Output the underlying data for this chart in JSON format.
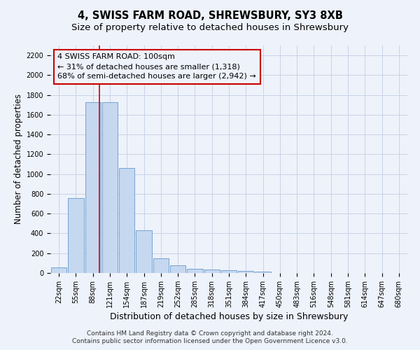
{
  "title": "4, SWISS FARM ROAD, SHREWSBURY, SY3 8XB",
  "subtitle": "Size of property relative to detached houses in Shrewsbury",
  "xlabel": "Distribution of detached houses by size in Shrewsbury",
  "ylabel": "Number of detached properties",
  "footer_line1": "Contains HM Land Registry data © Crown copyright and database right 2024.",
  "footer_line2": "Contains public sector information licensed under the Open Government Licence v3.0.",
  "bar_labels": [
    "22sqm",
    "55sqm",
    "88sqm",
    "121sqm",
    "154sqm",
    "187sqm",
    "219sqm",
    "252sqm",
    "285sqm",
    "318sqm",
    "351sqm",
    "384sqm",
    "417sqm",
    "450sqm",
    "483sqm",
    "516sqm",
    "548sqm",
    "581sqm",
    "614sqm",
    "647sqm",
    "680sqm"
  ],
  "bar_values": [
    55,
    760,
    1730,
    1730,
    1060,
    430,
    150,
    80,
    40,
    35,
    25,
    20,
    15,
    0,
    0,
    0,
    0,
    0,
    0,
    0,
    0
  ],
  "bar_color": "#c5d8f0",
  "bar_edgecolor": "#6699cc",
  "grid_color": "#c8d4e8",
  "background_color": "#eef2fa",
  "vline_color": "#cc0000",
  "annotation_line1": "4 SWISS FARM ROAD: 100sqm",
  "annotation_line2": "← 31% of detached houses are smaller (1,318)",
  "annotation_line3": "68% of semi-detached houses are larger (2,942) →",
  "annotation_box_color": "#cc0000",
  "ylim": [
    0,
    2300
  ],
  "yticks": [
    0,
    200,
    400,
    600,
    800,
    1000,
    1200,
    1400,
    1600,
    1800,
    2000,
    2200
  ],
  "title_fontsize": 10.5,
  "subtitle_fontsize": 9.5,
  "xlabel_fontsize": 9,
  "ylabel_fontsize": 8.5,
  "tick_fontsize": 7,
  "annotation_fontsize": 8,
  "footer_fontsize": 6.5
}
